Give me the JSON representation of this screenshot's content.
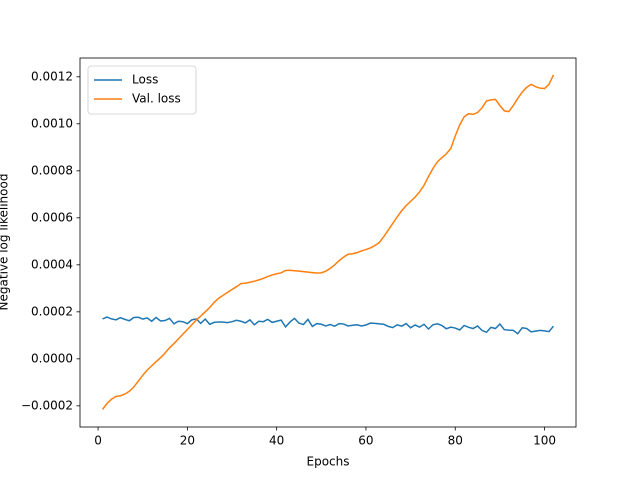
{
  "chart_data": {
    "type": "line",
    "xlabel": "Epochs",
    "ylabel": "Negative log likelihood",
    "x": [
      1,
      2,
      3,
      4,
      5,
      6,
      7,
      8,
      9,
      10,
      11,
      12,
      13,
      14,
      15,
      16,
      17,
      18,
      19,
      20,
      21,
      22,
      23,
      24,
      25,
      26,
      27,
      28,
      29,
      30,
      31,
      32,
      33,
      34,
      35,
      36,
      37,
      38,
      39,
      40,
      41,
      42,
      43,
      44,
      45,
      46,
      47,
      48,
      49,
      50,
      51,
      52,
      53,
      54,
      55,
      56,
      57,
      58,
      59,
      60,
      61,
      62,
      63,
      64,
      65,
      66,
      67,
      68,
      69,
      70,
      71,
      72,
      73,
      74,
      75,
      76,
      77,
      78,
      79,
      80,
      81,
      82,
      83,
      84,
      85,
      86,
      87,
      88,
      89,
      90,
      91,
      92,
      93,
      94,
      95,
      96,
      97,
      98,
      99,
      100,
      101,
      102
    ],
    "series": [
      {
        "name": "Loss",
        "color": "#1f77b4",
        "values": [
          0.00017,
          0.000178,
          0.00017,
          0.000166,
          0.000175,
          0.000168,
          0.000162,
          0.000176,
          0.000177,
          0.000169,
          0.000174,
          0.00016,
          0.000176,
          0.000161,
          0.000163,
          0.000172,
          0.000149,
          0.00016,
          0.000158,
          0.00015,
          0.000166,
          0.00017,
          0.000151,
          0.000169,
          0.000147,
          0.000155,
          0.000157,
          0.000156,
          0.000154,
          0.000158,
          0.000164,
          0.00016,
          0.000153,
          0.000166,
          0.000145,
          0.00016,
          0.000158,
          0.000168,
          0.000155,
          0.00016,
          0.000165,
          0.000136,
          0.000157,
          0.000172,
          0.000152,
          0.000146,
          0.000168,
          0.000138,
          0.00015,
          0.000147,
          0.00014,
          0.000146,
          0.000139,
          0.00015,
          0.000148,
          0.00014,
          0.000143,
          0.000145,
          0.00014,
          0.000144,
          0.000152,
          0.000151,
          0.000149,
          0.000147,
          0.000138,
          0.000133,
          0.000145,
          0.000139,
          0.00015,
          0.000132,
          0.000144,
          0.000135,
          0.000147,
          0.000127,
          0.000145,
          0.000149,
          0.000142,
          0.000128,
          0.000135,
          0.000131,
          0.000123,
          0.000142,
          0.000134,
          0.000129,
          0.00014,
          0.000121,
          0.000113,
          0.000134,
          0.000129,
          0.000148,
          0.000124,
          0.000122,
          0.000121,
          0.000107,
          0.000132,
          0.000129,
          0.000115,
          0.000118,
          0.000121,
          0.000119,
          0.000116,
          0.000139
        ]
      },
      {
        "name": "Val. loss",
        "color": "#ff7f0e",
        "values": [
          -0.000215,
          -0.00019,
          -0.000172,
          -0.00016,
          -0.000157,
          -0.00015,
          -0.000138,
          -0.00012,
          -9.5e-05,
          -7e-05,
          -4.8e-05,
          -3e-05,
          -1.2e-05,
          5e-06,
          2.5e-05,
          4.7e-05,
          6.5e-05,
          8.5e-05,
          0.000105,
          0.000125,
          0.000145,
          0.000165,
          0.000182,
          0.0002,
          0.000218,
          0.00024,
          0.000258,
          0.00027,
          0.000283,
          0.000295,
          0.000307,
          0.00032,
          0.000322,
          0.000326,
          0.00033,
          0.000336,
          0.000342,
          0.00035,
          0.000357,
          0.000362,
          0.000366,
          0.000376,
          0.000377,
          0.000375,
          0.000373,
          0.000371,
          0.000369,
          0.000367,
          0.000365,
          0.000366,
          0.000373,
          0.000385,
          0.0004,
          0.000418,
          0.000433,
          0.000445,
          0.000447,
          0.000452,
          0.000459,
          0.000465,
          0.000472,
          0.000482,
          0.000495,
          0.00052,
          0.000548,
          0.000576,
          0.000604,
          0.00063,
          0.000652,
          0.00067,
          0.000688,
          0.00071,
          0.000738,
          0.000775,
          0.00081,
          0.000838,
          0.000856,
          0.000872,
          0.000895,
          0.000948,
          0.000995,
          0.00103,
          0.001043,
          0.00104,
          0.001048,
          0.001068,
          0.001097,
          0.001102,
          0.001104,
          0.001078,
          0.001055,
          0.001052,
          0.001078,
          0.001108,
          0.001135,
          0.001155,
          0.001168,
          0.001158,
          0.001152,
          0.00115,
          0.001168,
          0.001208
        ]
      }
    ],
    "xlim": [
      -4.05,
      107.05
    ],
    "xticks": [
      0,
      20,
      40,
      60,
      80,
      100
    ],
    "ylim": [
      -0.00029,
      0.00128
    ],
    "yticks": [
      {
        "value": -0.0002,
        "label": "−0.0002"
      },
      {
        "value": 0,
        "label": "0.0000"
      },
      {
        "value": 0.0002,
        "label": "0.0002"
      },
      {
        "value": 0.0004,
        "label": "0.0004"
      },
      {
        "value": 0.0006,
        "label": "0.0006"
      },
      {
        "value": 0.0008,
        "label": "0.0008"
      },
      {
        "value": 0.001,
        "label": "0.0010"
      },
      {
        "value": 0.0012,
        "label": "0.0012"
      }
    ],
    "legend": "upper left",
    "grid": false
  }
}
